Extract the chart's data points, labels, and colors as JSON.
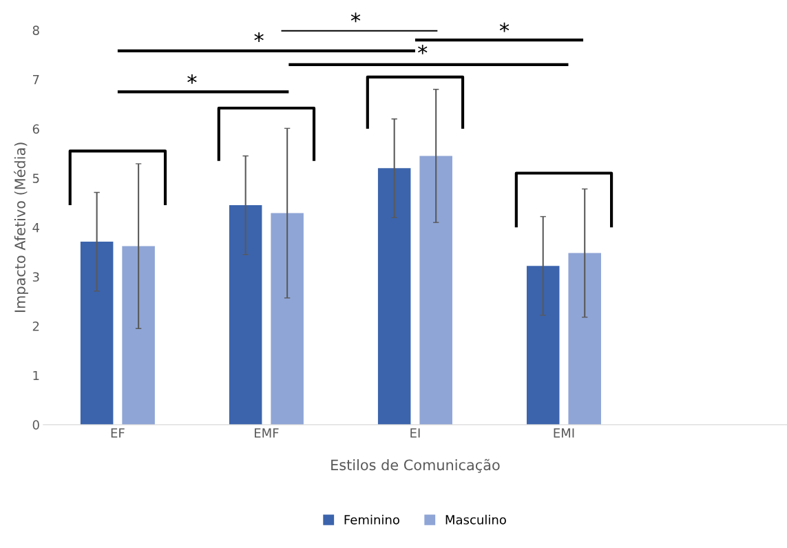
{
  "chart_data": {
    "type": "bar",
    "xlabel": "Estilos de Comunicação",
    "ylabel": "Impacto Afetivo (Média)",
    "categories": [
      "EF",
      "EMF",
      "EI",
      "EMI",
      null
    ],
    "series": [
      {
        "name": "Feminino",
        "color": "#3c64ad",
        "values": [
          3.71,
          4.45,
          5.2,
          3.22,
          null
        ],
        "errors": [
          1.0,
          1.0,
          1.0,
          1.0,
          null
        ]
      },
      {
        "name": "Masculino",
        "color": "#8fa5d6",
        "values": [
          3.62,
          4.29,
          5.45,
          3.48,
          null
        ],
        "errors": [
          1.67,
          1.72,
          1.35,
          1.3,
          null
        ]
      }
    ],
    "ylim": [
      0,
      8
    ],
    "yticks": [
      0,
      1,
      2,
      3,
      4,
      5,
      6,
      7,
      8
    ],
    "grid": false,
    "legend": "bottom",
    "annotations": [
      "*",
      "*",
      "*",
      "*",
      "*"
    ]
  }
}
